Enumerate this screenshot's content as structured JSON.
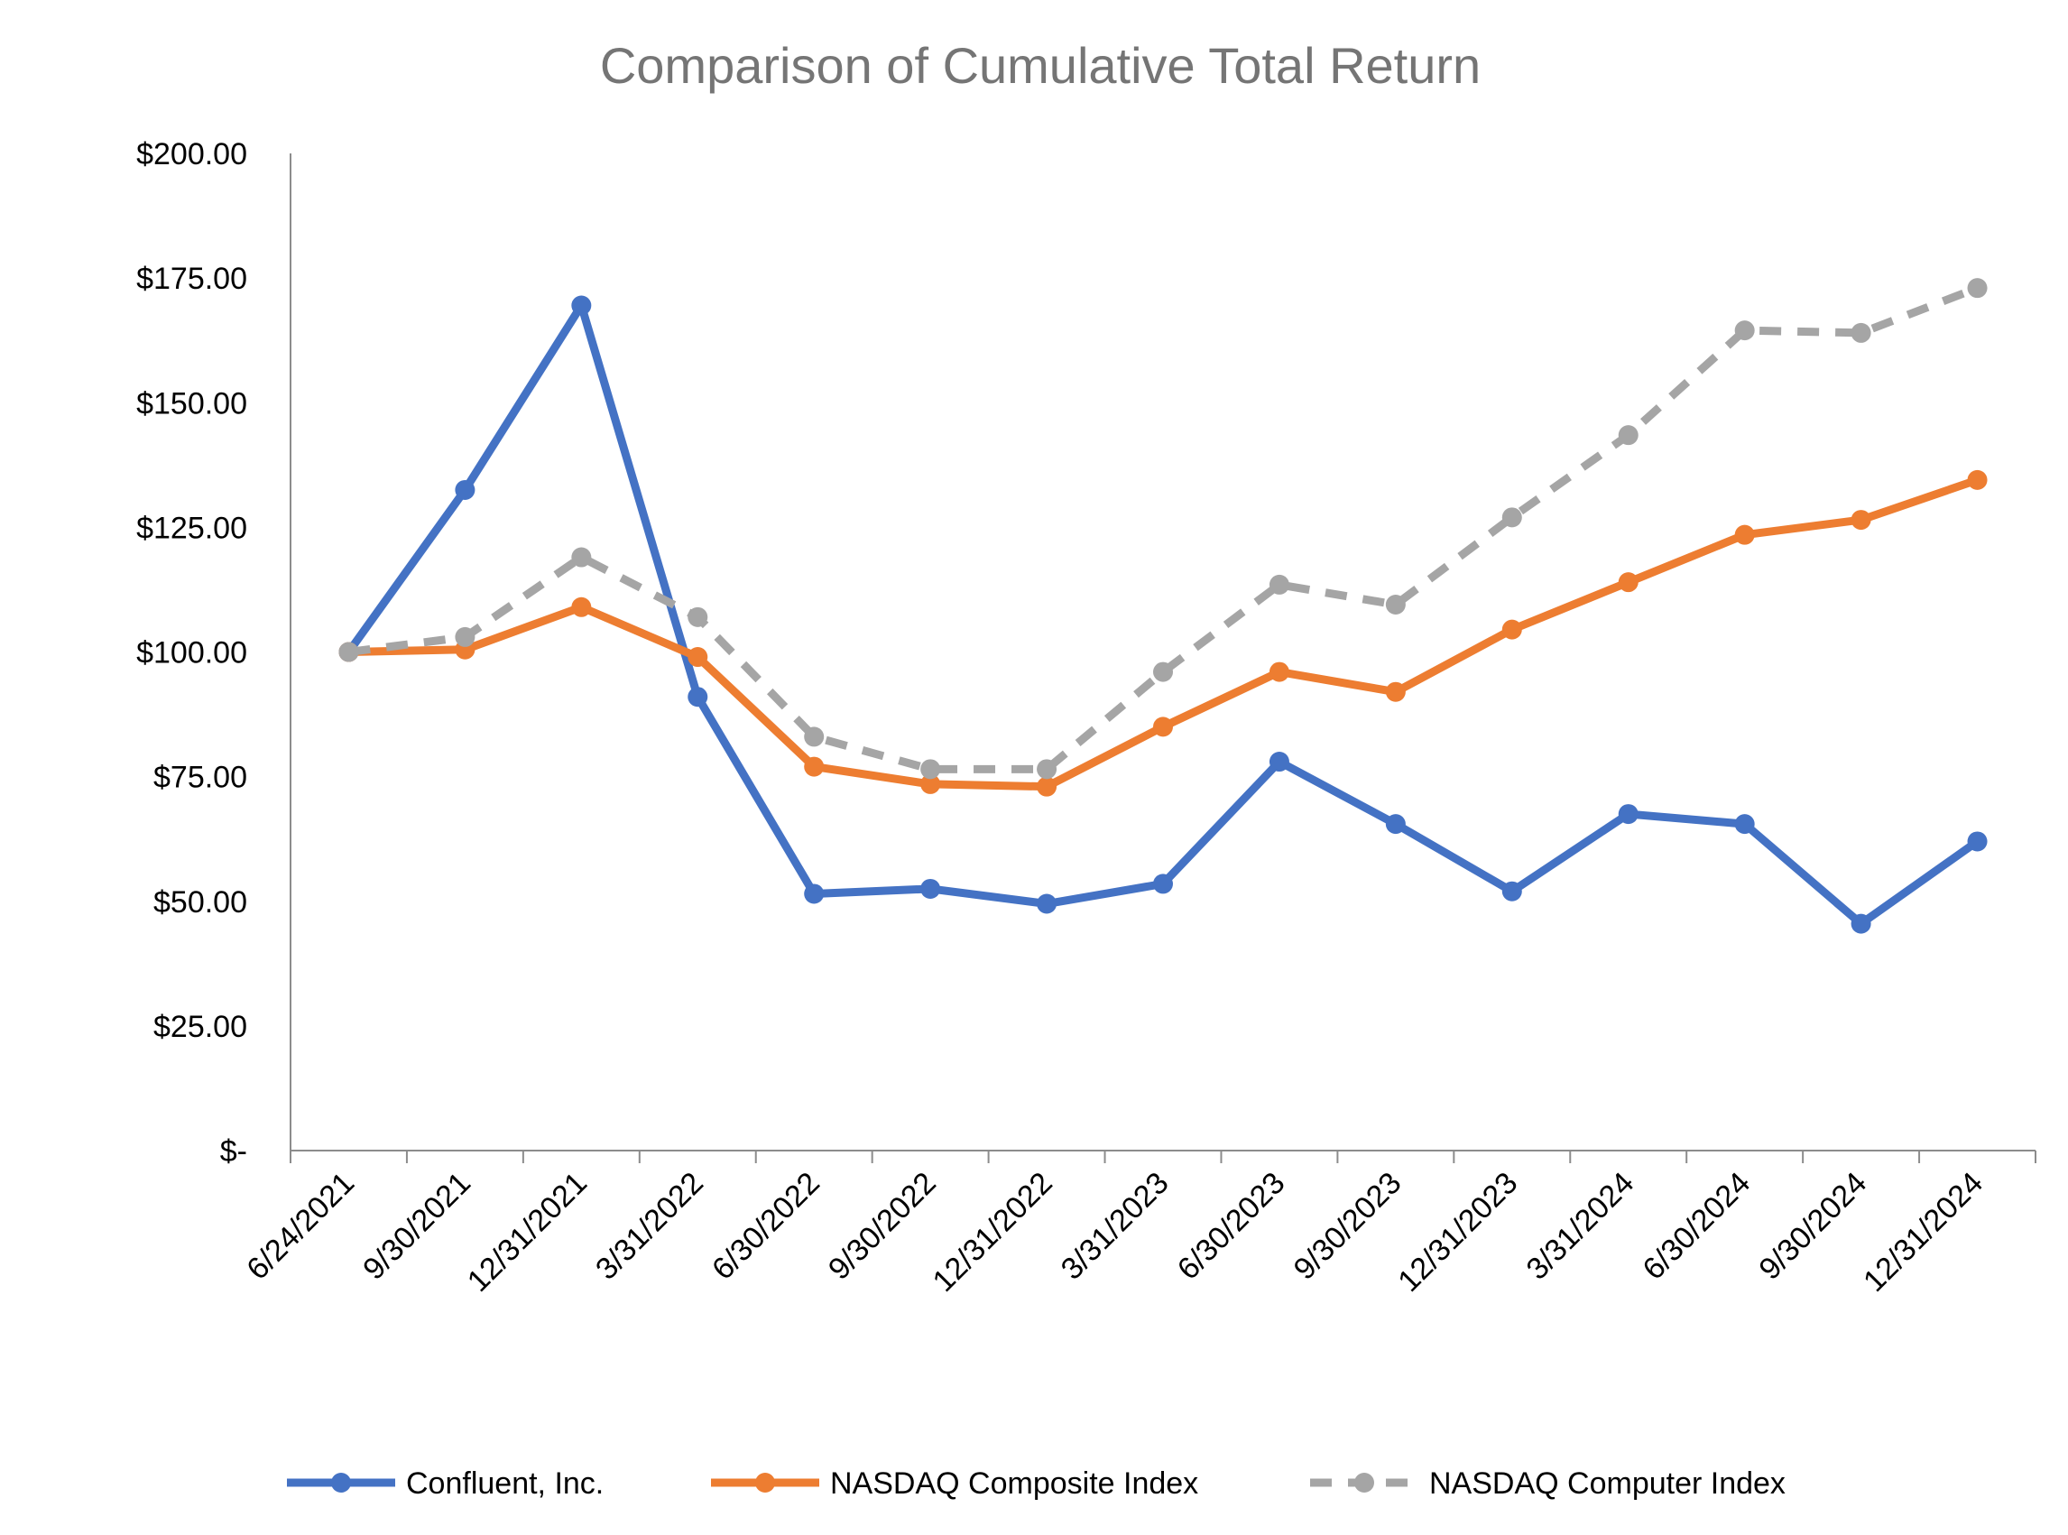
{
  "chart_data": {
    "type": "line",
    "title": "Comparison of Cumulative Total Return",
    "xlabel": "",
    "ylabel": "",
    "categories": [
      "6/24/2021",
      "9/30/2021",
      "12/31/2021",
      "3/31/2022",
      "6/30/2022",
      "9/30/2022",
      "12/31/2022",
      "3/31/2023",
      "6/30/2023",
      "9/30/2023",
      "12/31/2023",
      "3/31/2024",
      "6/30/2024",
      "9/30/2024",
      "12/31/2024"
    ],
    "ylim": [
      0,
      200
    ],
    "yticks": [
      0,
      25,
      50,
      75,
      100,
      125,
      150,
      175,
      200
    ],
    "ytick_labels": [
      "$-",
      "$25.00",
      "$50.00",
      "$75.00",
      "$100.00",
      "$125.00",
      "$150.00",
      "$175.00",
      "$200.00"
    ],
    "grid": false,
    "legend_position": "bottom",
    "series": [
      {
        "name": "Confluent, Inc.",
        "color": "#4472C4",
        "dashed": false,
        "values": [
          100.0,
          132.5,
          169.5,
          91.0,
          51.5,
          52.5,
          49.5,
          53.5,
          78.0,
          65.5,
          52.0,
          67.5,
          65.5,
          45.5,
          62.0
        ]
      },
      {
        "name": "NASDAQ Composite Index",
        "color": "#ED7D31",
        "dashed": false,
        "values": [
          100.0,
          100.5,
          109.0,
          99.0,
          77.0,
          73.5,
          73.0,
          85.0,
          96.0,
          92.0,
          104.5,
          114.0,
          123.5,
          126.5,
          134.5
        ]
      },
      {
        "name": "NASDAQ Computer Index",
        "color": "#A5A5A5",
        "dashed": true,
        "values": [
          100.0,
          103.0,
          119.0,
          107.0,
          83.0,
          76.5,
          76.5,
          96.0,
          113.5,
          109.5,
          127.0,
          143.5,
          164.5,
          164.0,
          173.0
        ]
      }
    ]
  }
}
